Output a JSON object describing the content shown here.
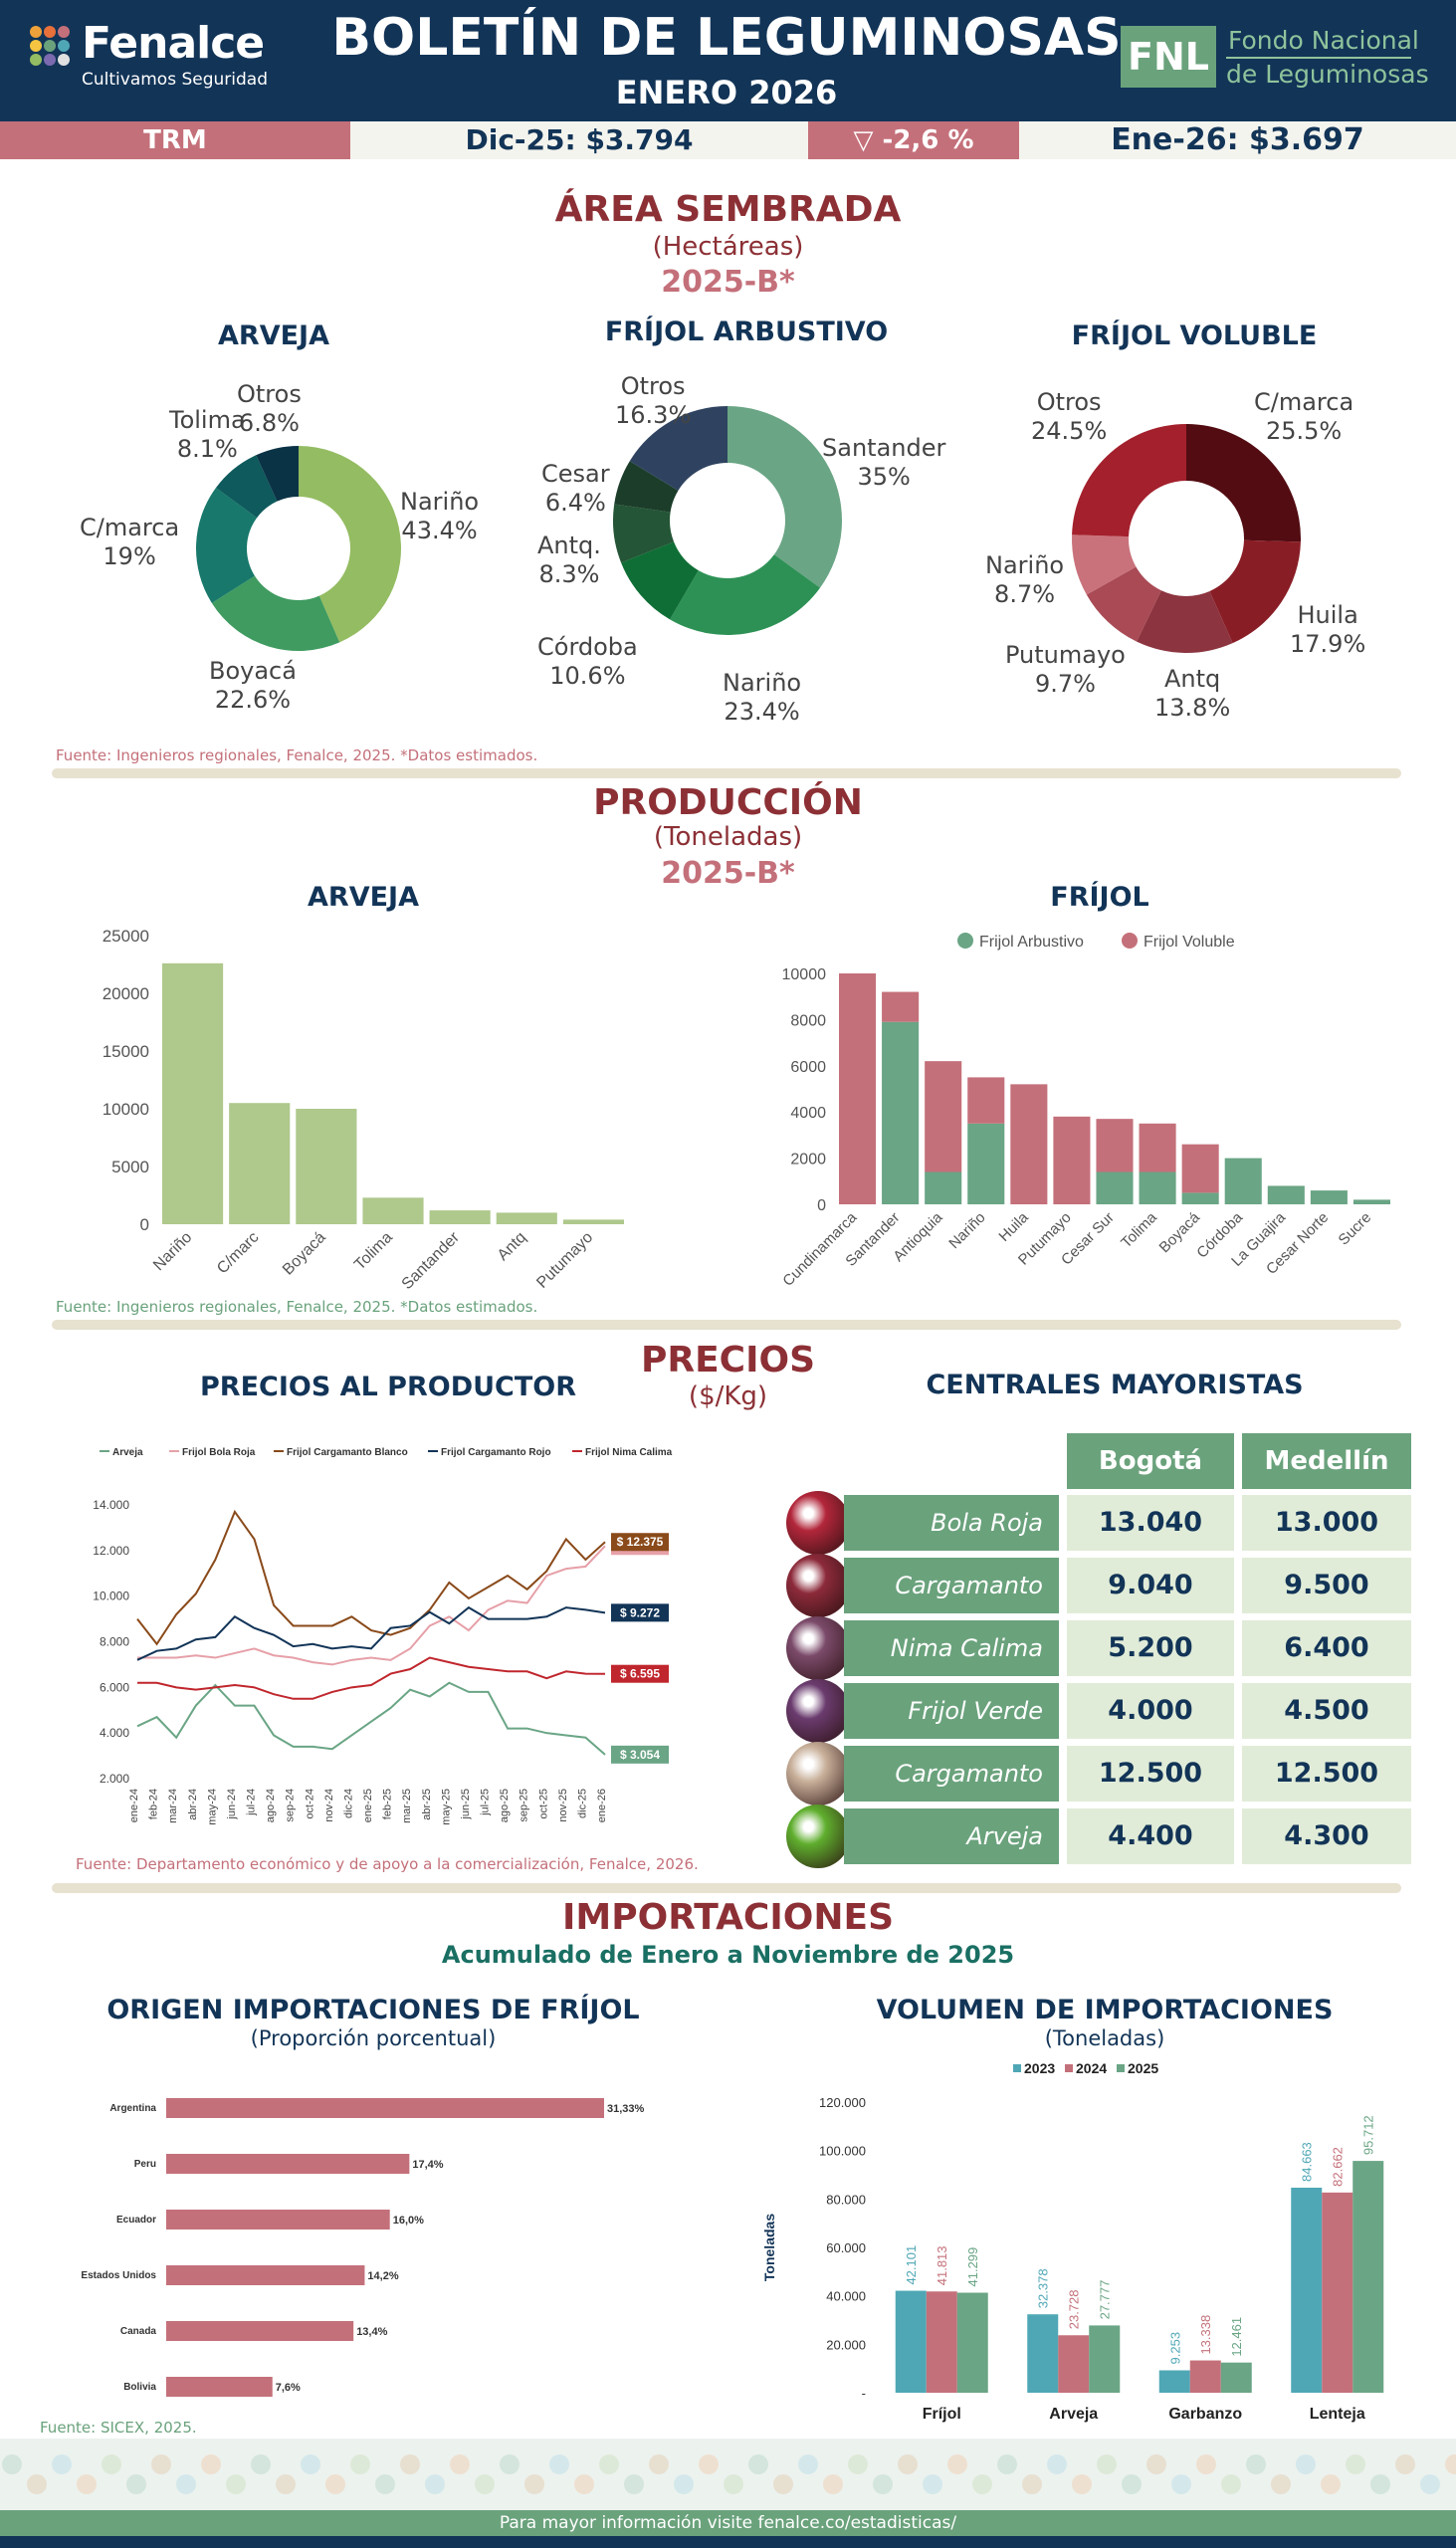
{
  "header": {
    "brand": "Fenalce",
    "slogan": "Cultivamos Seguridad",
    "title": "BOLETÍN DE LEGUMINOSAS",
    "subtitle": "ENERO 2026",
    "fnl_abbr": "FNL",
    "fnl_line1": "Fondo Nacional",
    "fnl_line2": "de Leguminosas",
    "colors": {
      "navy": "#123457",
      "green": "#6aa27c",
      "rose": "#c4707a",
      "maroon": "#8c3035"
    }
  },
  "trm": {
    "label": "TRM",
    "dec": "Dic-25: $3.794",
    "change": "▽     -2,6 %",
    "jan": "Ene-26: $3.697"
  },
  "area": {
    "title": "ÁREA SEMBRADA",
    "unit": "(Hectáreas)",
    "period": "2025-B*",
    "source": "Fuente: Ingenieros regionales, Fenalce, 2025. *Datos estimados."
  },
  "produccion": {
    "title": "PRODUCCIÓN",
    "unit": "(Toneladas)",
    "period": "2025-B*",
    "source": "Fuente: Ingenieros regionales, Fenalce, 2025. *Datos estimados."
  },
  "precios": {
    "title": "PRECIOS",
    "unit": "($/Kg)",
    "producer_title": "PRECIOS AL PRODUCTOR",
    "wholesale_title": "CENTRALES MAYORISTAS",
    "source": "Fuente: Departamento económico y de apoyo a la comercialización,  Fenalce, 2026.",
    "wholesale": {
      "cities": [
        "Bogotá",
        "Medellín"
      ],
      "rows": [
        {
          "product": "Bola Roja",
          "bogota": "13.040",
          "medellin": "13.000",
          "img_color": "#b2263a"
        },
        {
          "product": "Cargamanto Rojo",
          "bogota": "9.040",
          "medellin": "9.500",
          "img_color": "#8c2a3a"
        },
        {
          "product": "Nima Calima",
          "bogota": "5.200",
          "medellin": "6.400",
          "img_color": "#7b4a6a"
        },
        {
          "product": "Frijol Verde",
          "bogota": "4.000",
          "medellin": "4.500",
          "img_color": "#6a3b6e"
        },
        {
          "product": "Cargamanto Blanco",
          "bogota": "12.500",
          "medellin": "12.500",
          "img_color": "#c8b09a"
        },
        {
          "product": "Arveja",
          "bogota": "4.400",
          "medellin": "4.300",
          "img_color": "#5fae2e"
        }
      ]
    }
  },
  "importaciones": {
    "title": "IMPORTACIONES",
    "subtitle": "Acumulado de Enero a Noviembre de 2025",
    "origin_title": "ORIGEN IMPORTACIONES DE FRÍJOL",
    "origin_unit": "(Proporción porcentual)",
    "volume_title": "VOLUMEN DE IMPORTACIONES",
    "volume_unit": "(Toneladas)",
    "source": "Fuente: SICEX, 2025."
  },
  "footer": {
    "text": "Para mayor información visite fenalce.co/estadisticas/"
  },
  "chart_data": [
    {
      "id": "area-arveja",
      "type": "pie",
      "title": "ARVEJA",
      "slices": [
        {
          "name": "Nariño",
          "value": 43.4,
          "label": "43.4%",
          "color": "#94bc62"
        },
        {
          "name": "Boyacá",
          "value": 22.6,
          "label": "22.6%",
          "color": "#3f9b60"
        },
        {
          "name": "C/marca",
          "value": 19,
          "label": "19%",
          "color": "#17786b"
        },
        {
          "name": "Tolima",
          "value": 8.1,
          "label": "8.1%",
          "color": "#0e5a5c"
        },
        {
          "name": "Otros",
          "value": 6.8,
          "label": "6.8%",
          "color": "#0b3346"
        }
      ]
    },
    {
      "id": "area-frijol-arbustivo",
      "type": "pie",
      "title": "FRÍJOL ARBUSTIVO",
      "slices": [
        {
          "name": "Santander",
          "value": 35,
          "label": "35%",
          "color": "#6aa585"
        },
        {
          "name": "Nariño",
          "value": 23.4,
          "label": "23.4%",
          "color": "#2d9155"
        },
        {
          "name": "Córdoba",
          "value": 10.6,
          "label": "10.6%",
          "color": "#0f6e35"
        },
        {
          "name": "Antq.",
          "value": 8.3,
          "label": "8.3%",
          "color": "#245536"
        },
        {
          "name": "Cesar",
          "value": 6.4,
          "label": "6.4%",
          "color": "#1b3d2a"
        },
        {
          "name": "Otros",
          "value": 16.3,
          "label": "16.3%",
          "color": "#2f4360"
        }
      ]
    },
    {
      "id": "area-frijol-voluble",
      "type": "pie",
      "title": "FRÍJOL VOLUBLE",
      "slices": [
        {
          "name": "C/marca",
          "value": 25.5,
          "label": "25.5%",
          "color": "#520c12"
        },
        {
          "name": "Huila",
          "value": 17.9,
          "label": "17.9%",
          "color": "#891d25"
        },
        {
          "name": "Antq",
          "value": 13.8,
          "label": "13.8%",
          "color": "#8c343f"
        },
        {
          "name": "Putumayo",
          "value": 9.7,
          "label": "9.7%",
          "color": "#a94a55"
        },
        {
          "name": "Nariño",
          "value": 8.7,
          "label": "8.7%",
          "color": "#c9727b"
        },
        {
          "name": "Otros",
          "value": 24.5,
          "label": "24.5%",
          "color": "#a3202c"
        }
      ]
    },
    {
      "id": "prod-arveja",
      "type": "bar",
      "title": "ARVEJA",
      "categories": [
        "Nariño",
        "C/marc",
        "Boyacá",
        "Tolima",
        "Santander",
        "Antq",
        "Putumayo"
      ],
      "values": [
        22600,
        10500,
        10000,
        2300,
        1200,
        1000,
        400
      ],
      "ylim": [
        0,
        25000
      ],
      "yticks": [
        "0",
        "5000",
        "10000",
        "15000",
        "20000",
        "25000"
      ],
      "color": "#afc88c"
    },
    {
      "id": "prod-frijol",
      "type": "bar",
      "title": "FRÍJOL",
      "categories": [
        "Cundinamarca",
        "Santander",
        "Antioquia",
        "Nariño",
        "Huila",
        "Putumayo",
        "Cesar Sur",
        "Tolima",
        "Boyacá",
        "Córdoba",
        "La Guajira",
        "Cesar Norte",
        "Sucre"
      ],
      "series": [
        {
          "name": "Frijol Arbustivo",
          "values": [
            0,
            7900,
            1400,
            3500,
            0,
            0,
            1400,
            1400,
            500,
            2000,
            800,
            600,
            200
          ],
          "color": "#6aa585"
        },
        {
          "name": "Frijol Voluble",
          "values": [
            10000,
            1300,
            4800,
            2000,
            5200,
            3800,
            2300,
            2100,
            2100,
            0,
            0,
            0,
            0
          ],
          "color": "#c4707a"
        }
      ],
      "ylim": [
        0,
        10000
      ],
      "yticks": [
        "0",
        "2000",
        "4000",
        "6000",
        "8000",
        "10000"
      ],
      "legend": "top"
    },
    {
      "id": "precios-productor",
      "type": "line",
      "title": "PRECIOS AL PRODUCTOR",
      "x": [
        "ene-24",
        "feb-24",
        "mar-24",
        "abr-24",
        "may-24",
        "jun-24",
        "jul-24",
        "ago-24",
        "sep-24",
        "oct-24",
        "nov-24",
        "dic-24",
        "ene-25",
        "feb-25",
        "mar-25",
        "abr-25",
        "may-25",
        "jun-25",
        "jul-25",
        "ago-25",
        "sep-25",
        "oct-25",
        "nov-25",
        "dic-25",
        "ene-26"
      ],
      "ylim": [
        2000,
        14000
      ],
      "yticks": [
        "2.000",
        "4.000",
        "6.000",
        "8.000",
        "10.000",
        "12.000",
        "14.000"
      ],
      "legend": "top",
      "series": [
        {
          "name": "Arveja",
          "color": "#6aa585",
          "end_label": "$ 3.054",
          "values": [
            4300,
            4700,
            3800,
            5200,
            6100,
            5200,
            5200,
            3900,
            3400,
            3400,
            3300,
            3900,
            4500,
            5100,
            5900,
            5600,
            6200,
            5800,
            5800,
            4200,
            4200,
            4000,
            3900,
            3800,
            3054
          ]
        },
        {
          "name": "Frijol Bola Roja",
          "color": "#e6a0a8",
          "end_label": "$ 12.200",
          "values": [
            7300,
            7300,
            7300,
            7400,
            7300,
            7500,
            7700,
            7400,
            7300,
            7100,
            7000,
            7200,
            7300,
            7200,
            7700,
            8700,
            9100,
            8500,
            9400,
            9800,
            9700,
            10900,
            11200,
            11300,
            12200
          ]
        },
        {
          "name": "Frijol Cargamanto Blanco",
          "color": "#8a4a1a",
          "end_label": "$ 12.375",
          "values": [
            9000,
            7900,
            9200,
            10100,
            11600,
            13700,
            12500,
            9600,
            8700,
            8700,
            8700,
            9100,
            8500,
            8300,
            8600,
            9400,
            10600,
            9900,
            10400,
            10900,
            10300,
            11100,
            12500,
            11600,
            12375
          ]
        },
        {
          "name": "Frijol Cargamanto Rojo",
          "color": "#123457",
          "end_label": "$ 9.272",
          "values": [
            7200,
            7600,
            7700,
            8100,
            8200,
            9100,
            8600,
            8300,
            7800,
            7900,
            7700,
            7800,
            7700,
            8600,
            8700,
            9300,
            8800,
            9500,
            9000,
            9000,
            9000,
            9100,
            9500,
            9400,
            9272
          ]
        },
        {
          "name": "Frijol Nima Calima",
          "color": "#c0262d",
          "end_label": "$ 6.595",
          "values": [
            6200,
            6200,
            6000,
            5900,
            6000,
            6100,
            6000,
            5700,
            5500,
            5500,
            5800,
            6000,
            6100,
            6600,
            6800,
            7300,
            7100,
            6900,
            6800,
            6700,
            6700,
            6400,
            6700,
            6600,
            6595
          ]
        }
      ]
    },
    {
      "id": "origen-importaciones-frijol",
      "type": "bar",
      "orientation": "horizontal",
      "title": "ORIGEN IMPORTACIONES DE FRÍJOL",
      "categories": [
        "Argentina",
        "Peru",
        "Ecuador",
        "Estados Unidos",
        "Canada",
        "Bolivia"
      ],
      "values": [
        31.33,
        17.4,
        16.0,
        14.2,
        13.4,
        7.6
      ],
      "labels": [
        "31,33%",
        "17,4%",
        "16,0%",
        "14,2%",
        "13,4%",
        "7,6%"
      ],
      "color": "#c4707a"
    },
    {
      "id": "volumen-importaciones",
      "type": "bar",
      "title": "VOLUMEN DE IMPORTACIONES",
      "categories": [
        "Fríjol",
        "Arveja",
        "Garbanzo",
        "Lenteja"
      ],
      "ylabel": "Toneladas",
      "ylim": [
        0,
        120000
      ],
      "yticks": [
        "-",
        "20.000",
        "40.000",
        "60.000",
        "80.000",
        "100.000",
        "120.000"
      ],
      "legend": "top",
      "series": [
        {
          "name": "2023",
          "color": "#4fa7b5",
          "values": [
            42101,
            32378,
            9253,
            84663
          ],
          "labels": [
            "42.101",
            "32.378",
            "9.253",
            "84.663"
          ]
        },
        {
          "name": "2024",
          "color": "#c4707a",
          "values": [
            41813,
            23728,
            13338,
            82662
          ],
          "labels": [
            "41.813",
            "23.728",
            "13.338",
            "82.662"
          ]
        },
        {
          "name": "2025",
          "color": "#6aa585",
          "values": [
            41299,
            27777,
            12461,
            95712
          ],
          "labels": [
            "41.299",
            "27.777",
            "12.461",
            "95.712"
          ]
        }
      ]
    }
  ]
}
